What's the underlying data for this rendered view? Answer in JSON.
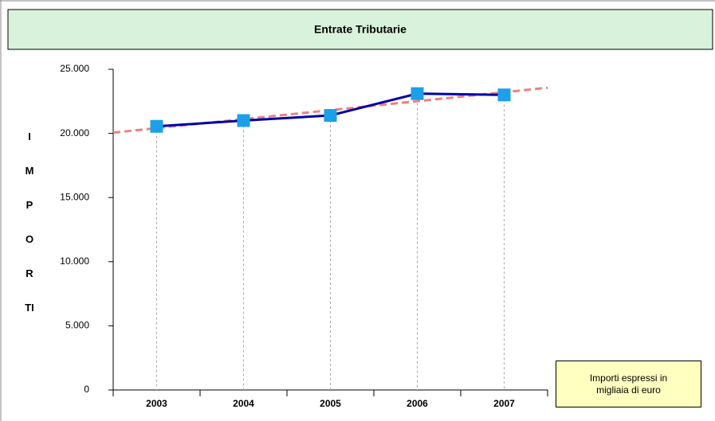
{
  "chart_data": {
    "type": "line",
    "title": "Entrate Tributarie",
    "ylabel": "IMPORTI",
    "annotation": "Importi espressi in migliaia di euro",
    "categories": [
      "2003",
      "2004",
      "2005",
      "2006",
      "2007"
    ],
    "series": [
      {
        "name": "Entrate Tributarie",
        "color": "#0000a8",
        "marker_color": "#1ca0e8",
        "values": [
          20550,
          21000,
          21400,
          23100,
          23000
        ]
      }
    ],
    "ylim": [
      0,
      25000
    ],
    "yticks": [
      {
        "value": 25000,
        "label": "25.000"
      },
      {
        "value": 20000,
        "label": "20.000"
      },
      {
        "value": 15000,
        "label": "15.000"
      },
      {
        "value": 10000,
        "label": "10.000"
      },
      {
        "value": 5000,
        "label": "5.000"
      },
      0
    ],
    "trendline": true,
    "trend_color": "#f08080",
    "drop_lines": true
  }
}
